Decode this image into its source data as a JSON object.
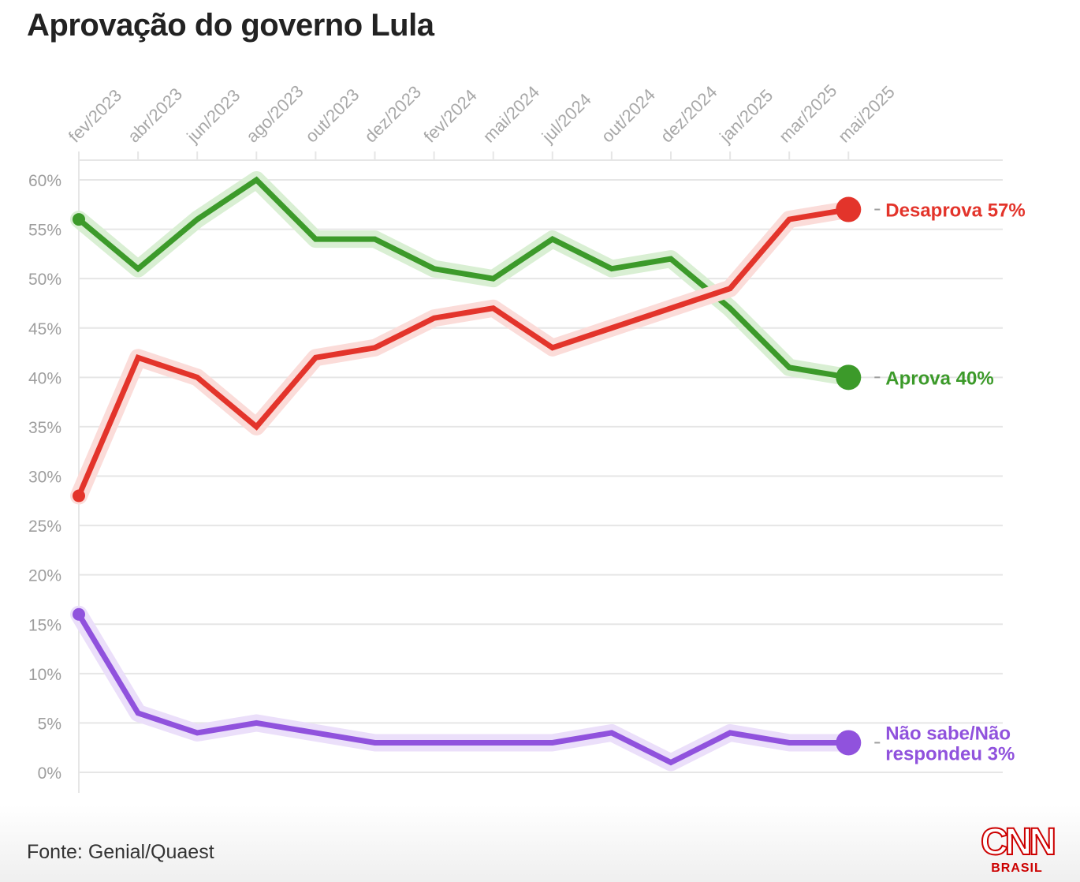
{
  "title": "Aprovação do governo Lula",
  "source": "Fonte: Genial/Quaest",
  "logo": {
    "word": "CNN",
    "sub": "BRASIL"
  },
  "chart_data": {
    "type": "line",
    "title": "Aprovação do governo Lula",
    "xlabel": "",
    "ylabel": "",
    "ylim": [
      0,
      60
    ],
    "yticks": [
      0,
      5,
      10,
      15,
      20,
      25,
      30,
      35,
      40,
      45,
      50,
      55,
      60
    ],
    "ytick_labels": [
      "0%",
      "5%",
      "10%",
      "15%",
      "20%",
      "25%",
      "30%",
      "35%",
      "40%",
      "45%",
      "50%",
      "55%",
      "60%"
    ],
    "categories": [
      "fev/2023",
      "abr/2023",
      "jun/2023",
      "ago/2023",
      "out/2023",
      "dez/2023",
      "fev/2024",
      "mai/2024",
      "jul/2024",
      "out/2024",
      "dez/2024",
      "jan/2025",
      "mar/2025",
      "mai/2025"
    ],
    "series": [
      {
        "name": "Aprova",
        "label": "Aprova 40%",
        "label_lines": [
          "Aprova 40%"
        ],
        "color": "#3c9a2a",
        "glow": "#d9efd3",
        "values": [
          56,
          51,
          56,
          60,
          54,
          54,
          51,
          50,
          54,
          51,
          52,
          47,
          41,
          40
        ]
      },
      {
        "name": "Desaprova",
        "label": "Desaprova 57%",
        "label_lines": [
          "Desaprova 57%"
        ],
        "color": "#e3342b",
        "glow": "#fbdcd9",
        "values": [
          28,
          42,
          40,
          35,
          42,
          43,
          46,
          47,
          43,
          45,
          47,
          49,
          56,
          57
        ]
      },
      {
        "name": "Não sabe/Não respondeu",
        "label": "Não sabe/Não respondeu 3%",
        "label_lines": [
          "Não sabe/Não",
          "respondeu 3%"
        ],
        "color": "#9052dd",
        "glow": "#ebdffa",
        "values": [
          16,
          6,
          4,
          5,
          4,
          3,
          3,
          3,
          3,
          4,
          1,
          4,
          3,
          3
        ]
      }
    ]
  }
}
